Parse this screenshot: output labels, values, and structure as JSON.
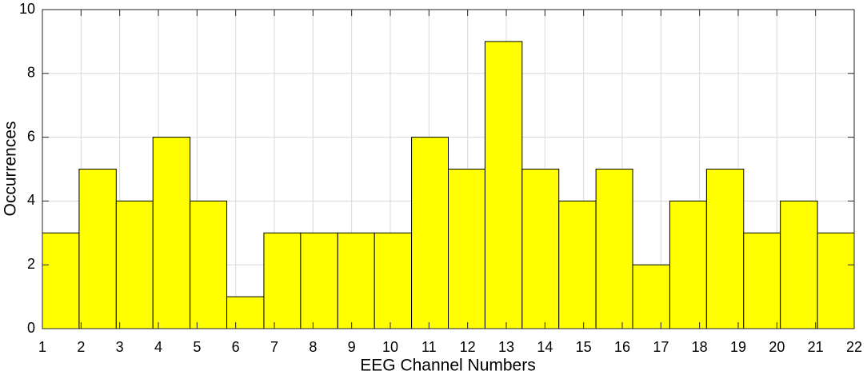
{
  "chart_data": {
    "type": "histogram",
    "xlabel": "EEG Channel Numbers",
    "ylabel": "Occurrences",
    "bins": [
      1,
      1.95,
      2.91,
      3.86,
      4.82,
      5.77,
      6.73,
      7.68,
      8.64,
      9.59,
      10.55,
      11.5,
      12.45,
      13.41,
      14.36,
      15.32,
      16.27,
      17.23,
      18.18,
      19.14,
      20.09,
      21.05,
      22
    ],
    "values": [
      3,
      5,
      4,
      6,
      4,
      1,
      3,
      3,
      3,
      3,
      6,
      5,
      9,
      5,
      4,
      5,
      2,
      4,
      5,
      3,
      4,
      3
    ],
    "color": "#ffff00",
    "xlim": [
      1,
      22
    ],
    "xticks": [
      1,
      2,
      3,
      4,
      5,
      6,
      7,
      8,
      9,
      10,
      11,
      12,
      13,
      14,
      15,
      16,
      17,
      18,
      19,
      20,
      21,
      22
    ],
    "ylim": [
      0,
      10
    ],
    "yticks": [
      0,
      2,
      4,
      6,
      8,
      10
    ],
    "grid": true
  }
}
